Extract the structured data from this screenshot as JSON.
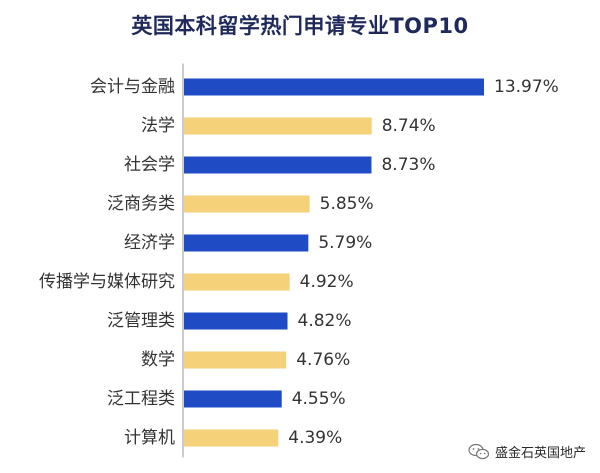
{
  "chart_data": {
    "type": "bar",
    "orientation": "horizontal",
    "title": "英国本科留学热门申请专业TOP10",
    "categories": [
      "会计与金融",
      "法学",
      "社会学",
      "泛商务类",
      "经济学",
      "传播学与媒体研究",
      "泛管理类",
      "数学",
      "泛工程类",
      "计算机"
    ],
    "values": [
      13.97,
      8.74,
      8.73,
      5.85,
      5.79,
      4.92,
      4.82,
      4.76,
      4.55,
      4.39
    ],
    "value_labels": [
      "13.97%",
      "8.74%",
      "8.73%",
      "5.85%",
      "5.79%",
      "4.92%",
      "4.82%",
      "4.76%",
      "4.55%",
      "4.39%"
    ],
    "xlim": [
      0,
      13.97
    ],
    "xlabel": "",
    "ylabel": "",
    "grid": false,
    "colors": [
      "#1f4bc4",
      "#f5d27a",
      "#1f4bc4",
      "#f5d27a",
      "#1f4bc4",
      "#f5d27a",
      "#1f4bc4",
      "#f5d27a",
      "#1f4bc4",
      "#f5d27a"
    ]
  },
  "watermark": {
    "text": "盛金石英国地产",
    "icon": "wechat-icon"
  },
  "colors": {
    "axis": "#9a9a9a",
    "label_text": "#333333",
    "title_text": "#1f2a5a"
  }
}
